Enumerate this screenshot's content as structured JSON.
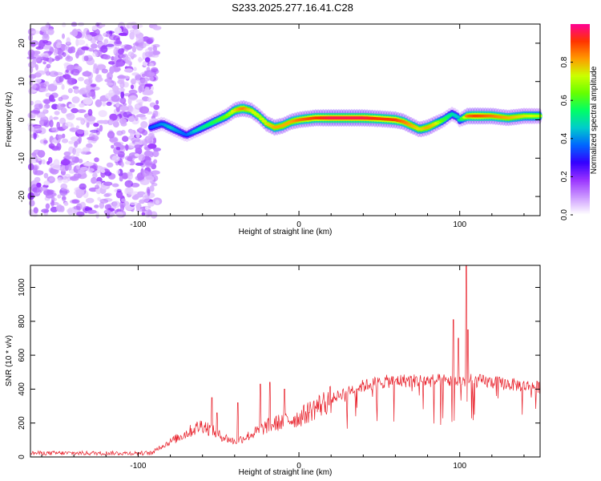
{
  "figure_title": "S233.2025.277.16.41.C28",
  "colorbar": {
    "label": "Normalized spectral amplitude",
    "ticks": [
      "0.0",
      "0.2",
      "0.4",
      "0.6",
      "0.8"
    ],
    "tick_values": [
      0.0,
      0.2,
      0.4,
      0.6,
      0.8
    ],
    "range": [
      0.0,
      1.0
    ],
    "colors": [
      "#ffffff",
      "#cc99ff",
      "#9933ff",
      "#3300ff",
      "#0066ff",
      "#00cccc",
      "#00ff66",
      "#66ff00",
      "#ccff00",
      "#ff9900",
      "#ff3300",
      "#ff0099"
    ]
  },
  "chart_data": [
    {
      "type": "heatmap",
      "title": "S233.2025.277.16.41.C28",
      "xlabel": "Height of straight line (km)",
      "ylabel": "Frequency (Hz)",
      "xlim": [
        -167,
        150
      ],
      "ylim": [
        -25,
        25
      ],
      "xticks": [
        -100,
        0,
        100
      ],
      "xtick_labels": [
        "-100",
        "0",
        "100"
      ],
      "yticks": [
        -20,
        -10,
        0,
        10,
        20
      ],
      "ytick_labels": [
        "-20",
        "-10",
        "0",
        "10",
        "20"
      ],
      "noise_region_x": [
        -167,
        -88
      ],
      "ridge": {
        "x": [
          -92,
          -85,
          -80,
          -75,
          -70,
          -65,
          -60,
          -55,
          -50,
          -45,
          -40,
          -35,
          -30,
          -25,
          -20,
          -15,
          -10,
          -5,
          0,
          10,
          20,
          30,
          40,
          50,
          60,
          65,
          70,
          75,
          80,
          85,
          90,
          95,
          98,
          100,
          105,
          110,
          120,
          130,
          140,
          150
        ],
        "freq": [
          -2,
          -1,
          -2,
          -3,
          -4,
          -3,
          -2,
          -1,
          0,
          1,
          2.5,
          3,
          2.5,
          1,
          -1,
          -2,
          -1.5,
          -0.5,
          0,
          0.5,
          0.5,
          0.5,
          0.5,
          0.3,
          0,
          -0.5,
          -1.5,
          -2.5,
          -2,
          -1,
          0,
          1.5,
          1,
          0,
          1,
          1,
          1,
          0.5,
          1,
          1
        ],
        "amplitude": [
          0.35,
          0.4,
          0.45,
          0.4,
          0.35,
          0.45,
          0.5,
          0.55,
          0.6,
          0.65,
          0.75,
          0.85,
          0.75,
          0.7,
          0.75,
          0.8,
          0.8,
          0.8,
          0.85,
          0.9,
          0.95,
          0.95,
          0.95,
          0.9,
          0.9,
          0.85,
          0.8,
          0.75,
          0.8,
          0.75,
          0.6,
          0.5,
          0.45,
          0.5,
          0.85,
          0.9,
          0.85,
          0.8,
          0.75,
          0.7
        ]
      }
    },
    {
      "type": "line",
      "xlabel": "Height of straight line (km)",
      "ylabel": "SNR (10 * v/v)",
      "xlim": [
        -167,
        150
      ],
      "ylim": [
        0,
        1130
      ],
      "xticks": [
        -100,
        0,
        100
      ],
      "xtick_labels": [
        "-100",
        "0",
        "100"
      ],
      "yticks": [
        0,
        200,
        400,
        600,
        800,
        1000
      ],
      "ytick_labels": [
        "0",
        "200",
        "400",
        "600",
        "800",
        "1000"
      ],
      "line_color": "#e8202a",
      "envelope": {
        "x": [
          -167,
          -100,
          -90,
          -80,
          -70,
          -60,
          -50,
          -40,
          -30,
          -20,
          -10,
          0,
          10,
          20,
          30,
          40,
          50,
          60,
          70,
          80,
          90,
          100,
          110,
          120,
          130,
          140,
          150
        ],
        "snr": [
          20,
          25,
          40,
          90,
          140,
          190,
          130,
          90,
          130,
          180,
          210,
          230,
          290,
          340,
          390,
          420,
          440,
          450,
          450,
          450,
          450,
          450,
          450,
          440,
          430,
          420,
          410
        ]
      },
      "spikes": {
        "x": [
          -54,
          -51,
          -38,
          -24,
          -18,
          -9,
          96,
          99,
          104,
          105
        ],
        "snr": [
          350,
          260,
          320,
          430,
          440,
          400,
          810,
          700,
          1130,
          750
        ]
      }
    }
  ]
}
